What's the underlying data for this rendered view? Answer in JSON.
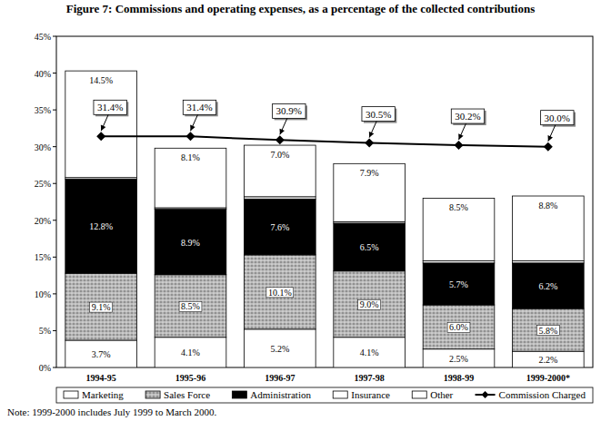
{
  "chart_data": {
    "type": "bar",
    "stacked": true,
    "title": "Figure 7: Commissions and operating expenses, as a percentage of the collected contributions",
    "categories": [
      "1994-95",
      "1995-96",
      "1996-97",
      "1997-98",
      "1998-99",
      "1999-2000*"
    ],
    "ylim": [
      0,
      45
    ],
    "yticks": [
      {
        "value": 0,
        "label": "0%"
      },
      {
        "value": 5,
        "label": "5%"
      },
      {
        "value": 10,
        "label": "10%"
      },
      {
        "value": 15,
        "label": "15%"
      },
      {
        "value": 20,
        "label": "20%"
      },
      {
        "value": 25,
        "label": "25%"
      },
      {
        "value": 30,
        "label": "30%"
      },
      {
        "value": 35,
        "label": "35%"
      },
      {
        "value": 40,
        "label": "40%"
      },
      {
        "value": 45,
        "label": "45%"
      }
    ],
    "grid": false,
    "legend": "bottom",
    "data_labels": true,
    "annotations": [
      "Note: 1999-2000 includes July 1999 to March 2000."
    ],
    "series": [
      {
        "name": "Marketing",
        "color": "#ffffff",
        "values": [
          3.7,
          4.1,
          5.2,
          4.1,
          2.5,
          2.2
        ],
        "value_labels": [
          "3.7%",
          "4.1%",
          "5.2%",
          "4.1%",
          "2.5%",
          "2.2%"
        ]
      },
      {
        "name": "Sales Force",
        "color": "#bdbdbd",
        "values": [
          9.1,
          8.5,
          10.1,
          9.0,
          6.0,
          5.8
        ],
        "value_labels": [
          "9.1%",
          "8.5%",
          "10.1%",
          "9.0%",
          "6.0%",
          "5.8%"
        ]
      },
      {
        "name": "Administration",
        "color": "#000000",
        "values": [
          12.8,
          8.9,
          7.6,
          6.5,
          5.7,
          6.2
        ],
        "value_labels": [
          "12.8%",
          "8.9%",
          "7.6%",
          "6.5%",
          "5.7%",
          "6.2%"
        ]
      },
      {
        "name": "Insurance",
        "color": "#ffffff",
        "values": [
          0.2,
          0.2,
          0.3,
          0.2,
          0.3,
          0.3
        ]
      },
      {
        "name": "Other",
        "color": "#ffffff",
        "values": [
          14.5,
          8.1,
          7.0,
          7.9,
          8.5,
          8.8
        ],
        "value_labels": [
          "14.5%",
          "8.1%",
          "7.0%",
          "7.9%",
          "8.5%",
          "8.8%"
        ]
      },
      {
        "name": "Commission Charged",
        "type": "line",
        "color": "#000000",
        "marker": "diamond",
        "line_style": "solid",
        "values": [
          31.4,
          31.4,
          30.9,
          30.5,
          30.2,
          30.0
        ],
        "value_labels": [
          "31.4%",
          "31.4%",
          "30.9%",
          "30.5%",
          "30.2%",
          "30.0%"
        ]
      }
    ]
  }
}
